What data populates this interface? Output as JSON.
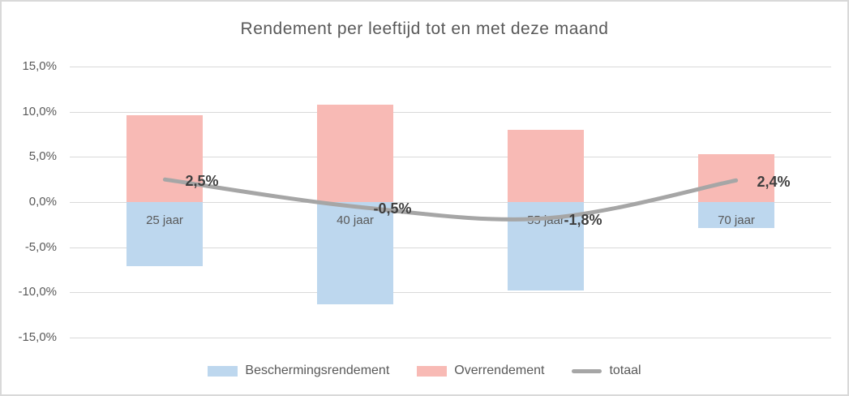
{
  "title": "Rendement per leeftijd tot en met deze maand",
  "chart_data": {
    "type": "bar",
    "subtype": "stacked-bars-with-line-overlay",
    "title": "Rendement per leeftijd tot en met deze maand",
    "categories": [
      "25 jaar",
      "40 jaar",
      "55 jaar",
      "70 jaar"
    ],
    "series": [
      {
        "name": "Beschermingsrendement",
        "type": "bar",
        "color": "#BDD7EE",
        "values": [
          -7.1,
          -11.3,
          -9.8,
          -2.9
        ]
      },
      {
        "name": "Overrendement",
        "type": "bar",
        "color": "#F8BAB5",
        "values": [
          9.6,
          10.8,
          8.0,
          5.3
        ]
      },
      {
        "name": "totaal",
        "type": "line",
        "color": "#A6A6A6",
        "values": [
          2.5,
          -0.5,
          -1.8,
          2.4
        ],
        "data_labels": [
          "2,5%",
          "-0,5%",
          "-1,8%",
          "2,4%"
        ]
      }
    ],
    "xlabel": "",
    "ylabel": "",
    "ylim": [
      -15,
      15
    ],
    "yticks": {
      "values": [
        15,
        10,
        5,
        0,
        -5,
        -10,
        -15
      ],
      "labels": [
        "15,0%",
        "10,0%",
        "5,0%",
        "0,0%",
        "-5,0%",
        "-10,0%",
        "-15,0%"
      ]
    },
    "grid": "horizontal",
    "gridline_color": "#D9D9D9",
    "legend_position": "bottom"
  },
  "legend": {
    "items": [
      {
        "label": "Beschermingsrendement",
        "swatch": "bar",
        "color": "#BDD7EE"
      },
      {
        "label": "Overrendement",
        "swatch": "bar",
        "color": "#F8BAB5"
      },
      {
        "label": "totaal",
        "swatch": "line",
        "color": "#A6A6A6"
      }
    ]
  },
  "colors": {
    "title_text": "#595959",
    "axis_text": "#595959",
    "data_label_text": "#3F3F3F",
    "frame_border": "#D9D9D9"
  }
}
